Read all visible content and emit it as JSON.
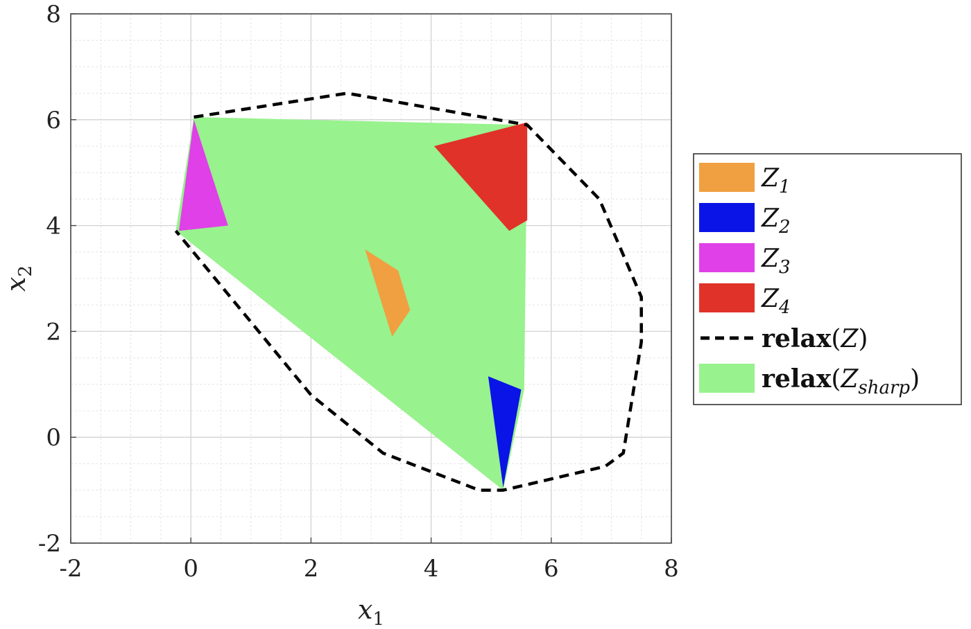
{
  "chart_data": {
    "type": "area",
    "xlabel": {
      "base": "x",
      "sub": "1"
    },
    "ylabel": {
      "base": "x",
      "sub": "2"
    },
    "xlim": [
      -2,
      8
    ],
    "ylim": [
      -2,
      8
    ],
    "xticks": [
      -2,
      0,
      2,
      4,
      6,
      8
    ],
    "yticks": [
      -2,
      0,
      2,
      4,
      6,
      8
    ],
    "minor_grid_step": 0.5,
    "grid": true,
    "legend_position": "right",
    "series": [
      {
        "key": "relax-zsharp",
        "name": "relax(Z_sharp)",
        "kind": "filled",
        "color": "#98f28e",
        "vertices": [
          [
            0.05,
            6.05
          ],
          [
            5.6,
            5.9
          ],
          [
            5.55,
            0.9
          ],
          [
            5.2,
            -1.0
          ],
          [
            -0.25,
            3.9
          ]
        ]
      },
      {
        "key": "z1",
        "name": "Z1",
        "kind": "filled",
        "color": "#f0a040",
        "vertices": [
          [
            2.9,
            3.55
          ],
          [
            3.45,
            3.15
          ],
          [
            3.65,
            2.4
          ],
          [
            3.35,
            1.9
          ]
        ]
      },
      {
        "key": "z2",
        "name": "Z2",
        "kind": "filled",
        "color": "#0a14e6",
        "vertices": [
          [
            4.95,
            1.15
          ],
          [
            5.5,
            0.9
          ],
          [
            5.2,
            -0.95
          ]
        ]
      },
      {
        "key": "z3",
        "name": "Z3",
        "kind": "filled",
        "color": "#e040e8",
        "vertices": [
          [
            0.05,
            6.0
          ],
          [
            0.62,
            4.0
          ],
          [
            -0.2,
            3.9
          ]
        ]
      },
      {
        "key": "z4",
        "name": "Z4",
        "kind": "filled",
        "color": "#e03228",
        "vertices": [
          [
            4.05,
            5.5
          ],
          [
            5.6,
            5.95
          ],
          [
            5.6,
            4.1
          ],
          [
            5.3,
            3.9
          ]
        ]
      },
      {
        "key": "relax-z",
        "name": "relax(Z)",
        "kind": "dashed-outline",
        "color": "#000000",
        "vertices": [
          [
            0.05,
            6.05
          ],
          [
            2.6,
            6.5
          ],
          [
            5.6,
            5.9
          ],
          [
            6.8,
            4.5
          ],
          [
            7.5,
            2.65
          ],
          [
            7.5,
            1.8
          ],
          [
            7.2,
            -0.3
          ],
          [
            6.9,
            -0.55
          ],
          [
            5.2,
            -1.0
          ],
          [
            4.8,
            -1.0
          ],
          [
            3.2,
            -0.3
          ],
          [
            2.0,
            0.8
          ],
          [
            -0.25,
            3.9
          ]
        ]
      }
    ],
    "legend": [
      {
        "key": "z1",
        "swatch": "fill",
        "color": "#f0a040",
        "prefix": "",
        "script": "Z",
        "sub": "1",
        "suffix": ""
      },
      {
        "key": "z2",
        "swatch": "fill",
        "color": "#0a14e6",
        "prefix": "",
        "script": "Z",
        "sub": "2",
        "suffix": ""
      },
      {
        "key": "z3",
        "swatch": "fill",
        "color": "#e040e8",
        "prefix": "",
        "script": "Z",
        "sub": "3",
        "suffix": ""
      },
      {
        "key": "z4",
        "swatch": "fill",
        "color": "#e03228",
        "prefix": "",
        "script": "Z",
        "sub": "4",
        "suffix": ""
      },
      {
        "key": "relax-z",
        "swatch": "dash",
        "color": "#000000",
        "prefix": "relax",
        "script": "Z",
        "sub": "",
        "suffix": ")"
      },
      {
        "key": "relax-zsharp",
        "swatch": "fill",
        "color": "#98f28e",
        "prefix": "relax",
        "script": "Z",
        "sub": "sharp",
        "suffix": ")"
      }
    ]
  }
}
